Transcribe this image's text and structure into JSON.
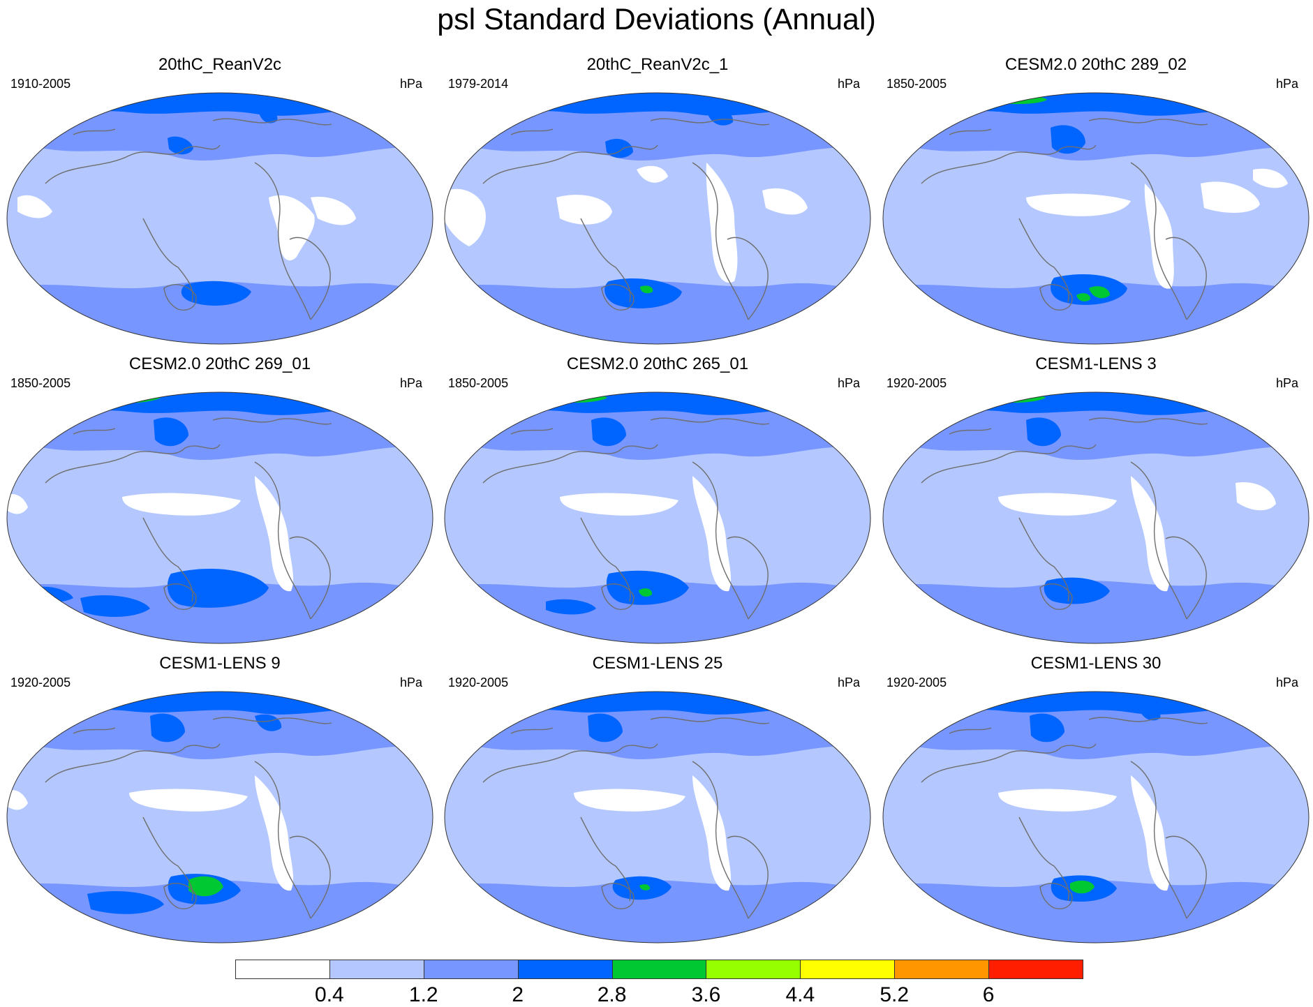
{
  "figure": {
    "title": "psl Standard Deviations (Annual)"
  },
  "panels": [
    {
      "title": "20thC_ReanV2c",
      "period": "1910-2005",
      "units": "hPa",
      "variant": 0
    },
    {
      "title": "20thC_ReanV2c_1",
      "period": "1979-2014",
      "units": "hPa",
      "variant": 1
    },
    {
      "title": "CESM2.0 20thC 289_02",
      "period": "1850-2005",
      "units": "hPa",
      "variant": 2
    },
    {
      "title": "CESM2.0 20thC 269_01",
      "period": "1850-2005",
      "units": "hPa",
      "variant": 3
    },
    {
      "title": "CESM2.0 20thC 265_01",
      "period": "1850-2005",
      "units": "hPa",
      "variant": 4
    },
    {
      "title": "CESM1-LENS 3",
      "period": "1920-2005",
      "units": "hPa",
      "variant": 5
    },
    {
      "title": "CESM1-LENS 9",
      "period": "1920-2005",
      "units": "hPa",
      "variant": 6
    },
    {
      "title": "CESM1-LENS 25",
      "period": "1920-2005",
      "units": "hPa",
      "variant": 7
    },
    {
      "title": "CESM1-LENS 30",
      "period": "1920-2005",
      "units": "hPa",
      "variant": 8
    }
  ],
  "colorbar": {
    "labels": [
      "0.4",
      "1.2",
      "2",
      "2.8",
      "3.6",
      "4.4",
      "5.2",
      "6"
    ],
    "colors": [
      "#ffffff",
      "#b4c8ff",
      "#7896ff",
      "#0064ff",
      "#00c832",
      "#96ff00",
      "#ffff00",
      "#ff9600",
      "#ff1e00"
    ]
  },
  "map_colors": {
    "level1": "#b4c8ff",
    "level2": "#7896ff",
    "level3": "#0064ff",
    "level4": "#00c832",
    "coast": "#6e6e6e",
    "outline": "#333333"
  }
}
